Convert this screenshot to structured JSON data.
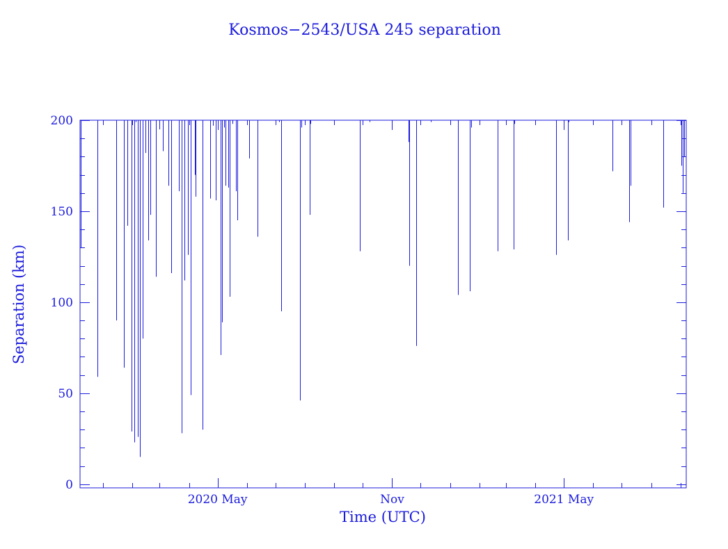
{
  "chart_data": {
    "type": "bar",
    "title": "Kosmos−2543/USA 245 separation",
    "xlabel": "Time (UTC)",
    "ylabel": "Separation (km)",
    "x_unit": "date",
    "xlim": [
      "2019-12-08",
      "2021-09-07"
    ],
    "ylim": [
      -2,
      200
    ],
    "y_ticks": [
      0,
      50,
      100,
      150,
      200
    ],
    "x_ticks": [
      {
        "date": "2020-05-01",
        "label": "2020 May"
      },
      {
        "date": "2020-11-01",
        "label": "Nov"
      },
      {
        "date": "2021-05-01",
        "label": "2021 May"
      }
    ],
    "grid": false,
    "color": "#1a1adc",
    "series": [
      {
        "x": [
          "2019-12-09",
          "2019-12-26",
          "2020-01-15",
          "2020-01-23",
          "2020-01-27",
          "2020-01-31",
          "2020-02-03",
          "2020-02-05",
          "2020-02-07",
          "2020-02-09",
          "2020-02-12",
          "2020-02-15",
          "2020-02-18",
          "2020-02-20",
          "2020-02-26",
          "2020-03-01",
          "2020-03-04",
          "2020-03-10",
          "2020-03-13",
          "2020-03-21",
          "2020-03-24",
          "2020-03-27",
          "2020-03-31",
          "2020-04-03",
          "2020-04-07",
          "2020-04-08",
          "2020-04-15",
          "2020-04-23",
          "2020-04-26",
          "2020-04-29",
          "2020-05-04",
          "2020-05-06",
          "2020-05-08",
          "2020-05-09",
          "2020-05-12",
          "2020-05-14",
          "2020-05-17",
          "2020-05-20",
          "2020-05-22",
          "2020-06-03",
          "2020-06-12",
          "2020-07-05",
          "2020-07-07",
          "2020-07-27",
          "2020-07-28",
          "2020-08-06",
          "2020-08-07",
          "2020-09-28",
          "2020-10-08",
          "2020-11-18",
          "2020-11-19",
          "2020-11-26",
          "2020-12-12",
          "2021-01-09",
          "2021-01-22",
          "2021-01-23",
          "2021-02-20",
          "2021-03-09",
          "2021-03-10",
          "2021-04-23",
          "2021-05-05",
          "2021-05-06",
          "2021-06-21",
          "2021-07-09",
          "2021-07-10",
          "2021-08-14",
          "2021-09-02",
          "2021-09-03",
          "2021-09-05"
        ],
        "values": [
          130,
          59,
          90,
          64,
          142,
          29,
          23,
          199,
          26,
          15,
          80,
          182,
          134,
          148,
          114,
          195,
          183,
          164,
          116,
          161,
          28,
          112,
          126,
          49,
          170,
          158,
          30,
          157,
          197,
          156,
          71,
          89,
          196,
          164,
          163,
          103,
          198,
          161,
          145,
          179,
          136,
          199,
          95,
          46,
          196,
          148,
          198,
          128,
          199,
          188,
          120,
          76,
          199,
          104,
          106,
          196,
          128,
          129,
          198,
          126,
          134,
          199,
          172,
          144,
          164,
          152,
          175,
          160,
          180
        ]
      }
    ]
  }
}
